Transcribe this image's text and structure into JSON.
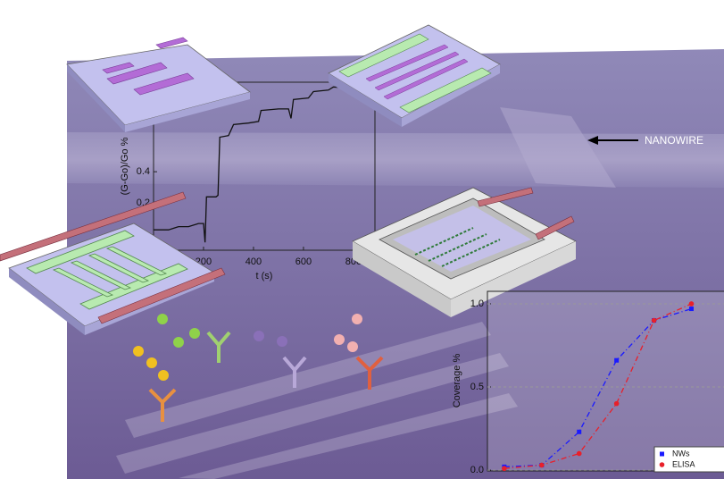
{
  "image": {
    "annotation": "NANOWIRE"
  },
  "chart_data": [
    {
      "type": "line",
      "x_label": "t (s)",
      "y_label": "(G-Go)/Go %",
      "xlim": [
        0,
        886
      ],
      "ylim": [
        -0.1,
        0.97
      ],
      "xticks": [
        200,
        400,
        600,
        800
      ],
      "yticks": [
        0.2,
        0.4
      ],
      "series": [
        {
          "color": "#111111",
          "x": [
            0,
            60,
            100,
            140,
            180,
            200,
            206,
            212,
            250,
            258,
            265,
            300,
            320,
            380,
            420,
            430,
            500,
            540,
            550,
            560,
            620,
            640,
            700,
            720,
            800,
            880
          ],
          "values": [
            0.03,
            0.03,
            0.05,
            0.05,
            0.07,
            0.07,
            -0.05,
            0.24,
            0.24,
            0.25,
            0.62,
            0.63,
            0.7,
            0.71,
            0.72,
            0.79,
            0.8,
            0.8,
            0.74,
            0.86,
            0.87,
            0.91,
            0.92,
            0.94,
            0.93,
            0.94
          ]
        }
      ]
    },
    {
      "type": "scatter",
      "y_label": "Coverage %",
      "xlim": [
        0.55,
        7.3
      ],
      "ylim": [
        -0.005,
        1.075
      ],
      "yticks": [
        {
          "value": 0,
          "label": "0.0"
        },
        {
          "value": 0.5,
          "label": "0.5"
        },
        {
          "value": 1,
          "label": "1.0"
        }
      ],
      "grid": true,
      "legend": "lower right",
      "series": [
        {
          "name": "NWs",
          "color": "#1a1aff",
          "marker": "square",
          "x": [
            1,
            2,
            3,
            4,
            5,
            6
          ],
          "values": [
            0.02,
            0.03,
            0.23,
            0.66,
            0.9,
            0.97
          ]
        },
        {
          "name": "ELISA",
          "color": "#e8202a",
          "marker": "circle",
          "x": [
            1,
            2,
            3,
            4,
            5,
            6
          ],
          "values": [
            0.01,
            0.03,
            0.1,
            0.4,
            0.9,
            1.0
          ]
        }
      ]
    }
  ]
}
